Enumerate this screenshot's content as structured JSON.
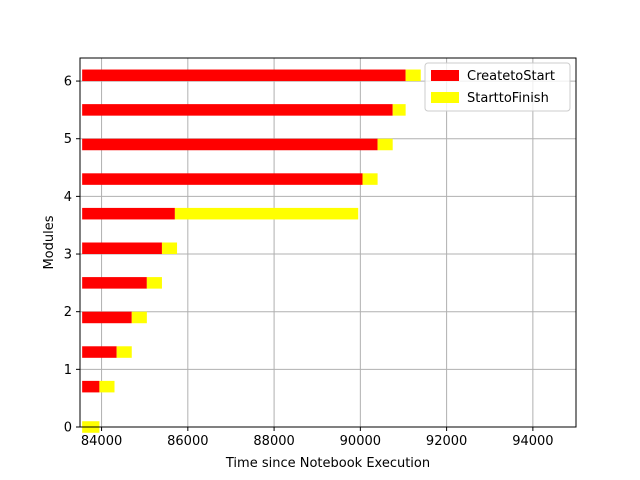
{
  "chart_data": {
    "type": "bar",
    "orientation": "horizontal-stacked",
    "xlabel": "Time since Notebook Execution",
    "ylabel": "Modules",
    "xlim": [
      83500,
      95000
    ],
    "ylim": [
      0,
      6.4
    ],
    "xticks": [
      84000,
      86000,
      88000,
      90000,
      92000,
      94000
    ],
    "yticks": [
      0,
      1,
      2,
      3,
      4,
      5,
      6
    ],
    "grid": true,
    "legend_position": "top-right",
    "series": [
      {
        "name": "CreatetoStart",
        "color": "#ff0000"
      },
      {
        "name": "StarttoFinish",
        "color": "#ffff00"
      }
    ],
    "bars": [
      {
        "y": 0.0,
        "start": 83550,
        "create_to_start": 0,
        "start_to_finish": 400
      },
      {
        "y": 0.7,
        "start": 83550,
        "create_to_start": 400,
        "start_to_finish": 350
      },
      {
        "y": 1.3,
        "start": 83550,
        "create_to_start": 800,
        "start_to_finish": 350
      },
      {
        "y": 1.9,
        "start": 83550,
        "create_to_start": 1150,
        "start_to_finish": 350
      },
      {
        "y": 2.5,
        "start": 83550,
        "create_to_start": 1500,
        "start_to_finish": 350
      },
      {
        "y": 3.1,
        "start": 83550,
        "create_to_start": 1850,
        "start_to_finish": 350
      },
      {
        "y": 3.7,
        "start": 83550,
        "create_to_start": 2150,
        "start_to_finish": 4250
      },
      {
        "y": 4.3,
        "start": 83550,
        "create_to_start": 6500,
        "start_to_finish": 350
      },
      {
        "y": 4.9,
        "start": 83550,
        "create_to_start": 6850,
        "start_to_finish": 350
      },
      {
        "y": 5.5,
        "start": 83550,
        "create_to_start": 7200,
        "start_to_finish": 300
      },
      {
        "y": 6.1,
        "start": 83550,
        "create_to_start": 7500,
        "start_to_finish": 350
      }
    ]
  }
}
